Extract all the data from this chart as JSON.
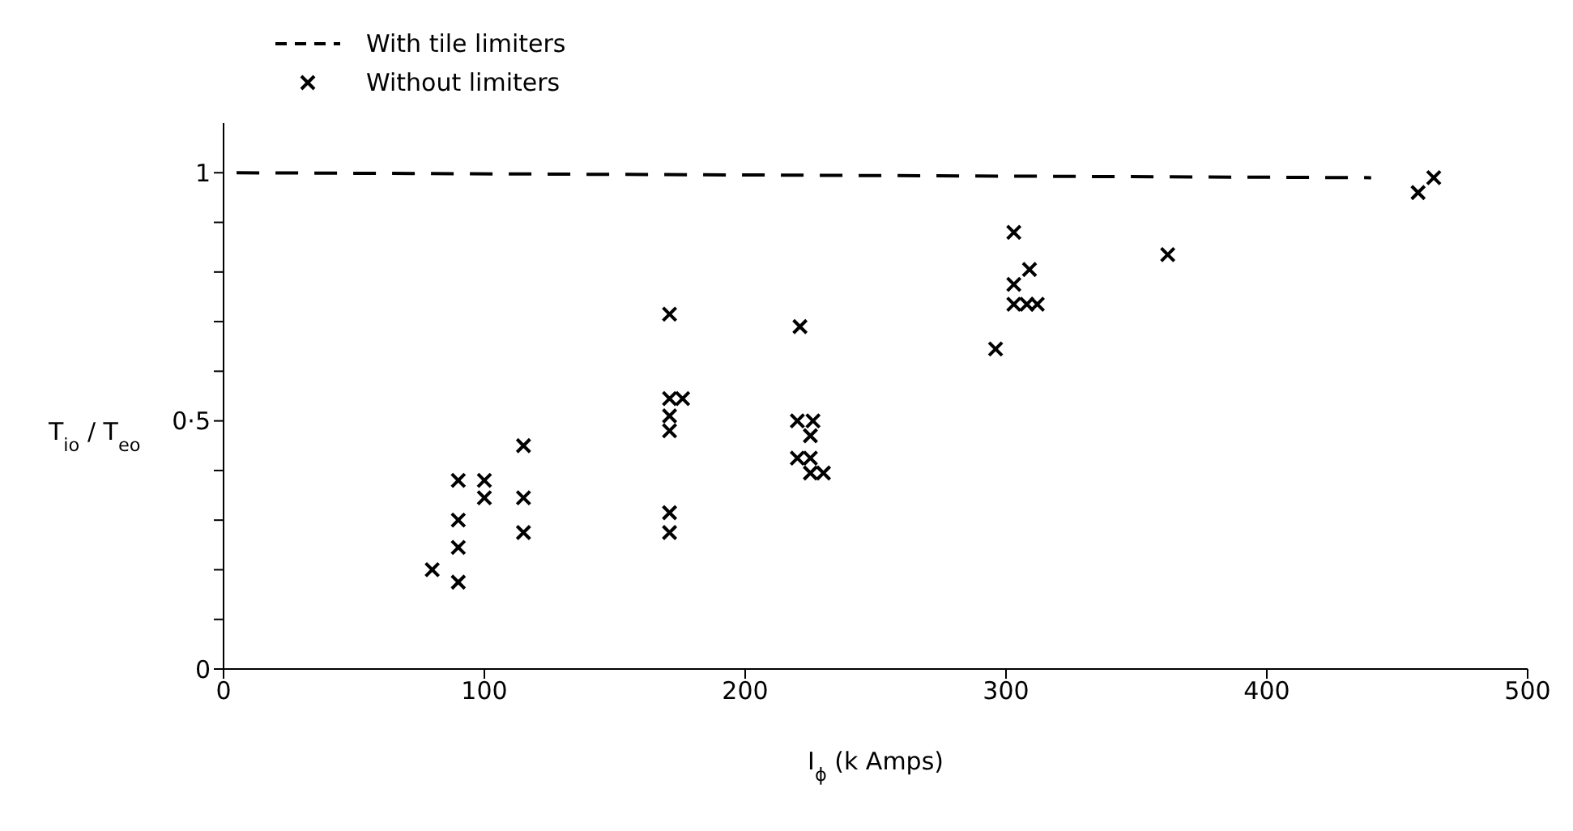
{
  "chart_data": {
    "type": "scatter",
    "xlabel": "I$_{ϕ}$ (k Amps)",
    "ylabel": "T$_{io}$ / T$_{eo}$",
    "xlim": [
      0,
      500
    ],
    "xticks": [
      0,
      100,
      200,
      300,
      400,
      500
    ],
    "ylim": [
      0,
      1.1
    ],
    "yticks": [
      0,
      {
        "value": 0.1,
        "label": null
      },
      {
        "value": 0.2,
        "label": null
      },
      {
        "value": 0.3,
        "label": null
      },
      {
        "value": 0.4,
        "label": null
      },
      {
        "value": 0.5,
        "label": "0·5"
      },
      {
        "value": 0.6,
        "label": null
      },
      {
        "value": 0.7,
        "label": null
      },
      {
        "value": 0.8,
        "label": null
      },
      {
        "value": 0.9,
        "label": null
      },
      1
    ],
    "legend": "top",
    "grid": false,
    "series": [
      {
        "name": "With tile limiters",
        "type": "line",
        "line_style": "dashed",
        "marker": "none",
        "color": "#000000",
        "x": [
          5,
          440
        ],
        "values": [
          1,
          0.99
        ]
      },
      {
        "name": "Without limiters",
        "marker": "cross",
        "color": "#000000",
        "x": [
          80,
          90,
          90,
          90,
          90,
          100,
          100,
          115,
          115,
          115,
          171,
          171,
          176,
          171,
          171,
          171,
          171,
          221,
          220,
          226,
          225,
          220,
          225,
          225,
          230,
          296,
          303,
          303,
          308,
          312,
          303,
          309,
          362,
          458,
          464
        ],
        "values": [
          0.2,
          0.38,
          0.3,
          0.245,
          0.175,
          0.38,
          0.345,
          0.45,
          0.345,
          0.275,
          0.715,
          0.545,
          0.545,
          0.51,
          0.48,
          0.315,
          0.275,
          0.69,
          0.5,
          0.5,
          0.47,
          0.425,
          0.425,
          0.395,
          0.395,
          0.645,
          0.775,
          0.735,
          0.735,
          0.735,
          0.88,
          0.805,
          0.835,
          0.96,
          0.99
        ]
      }
    ]
  }
}
